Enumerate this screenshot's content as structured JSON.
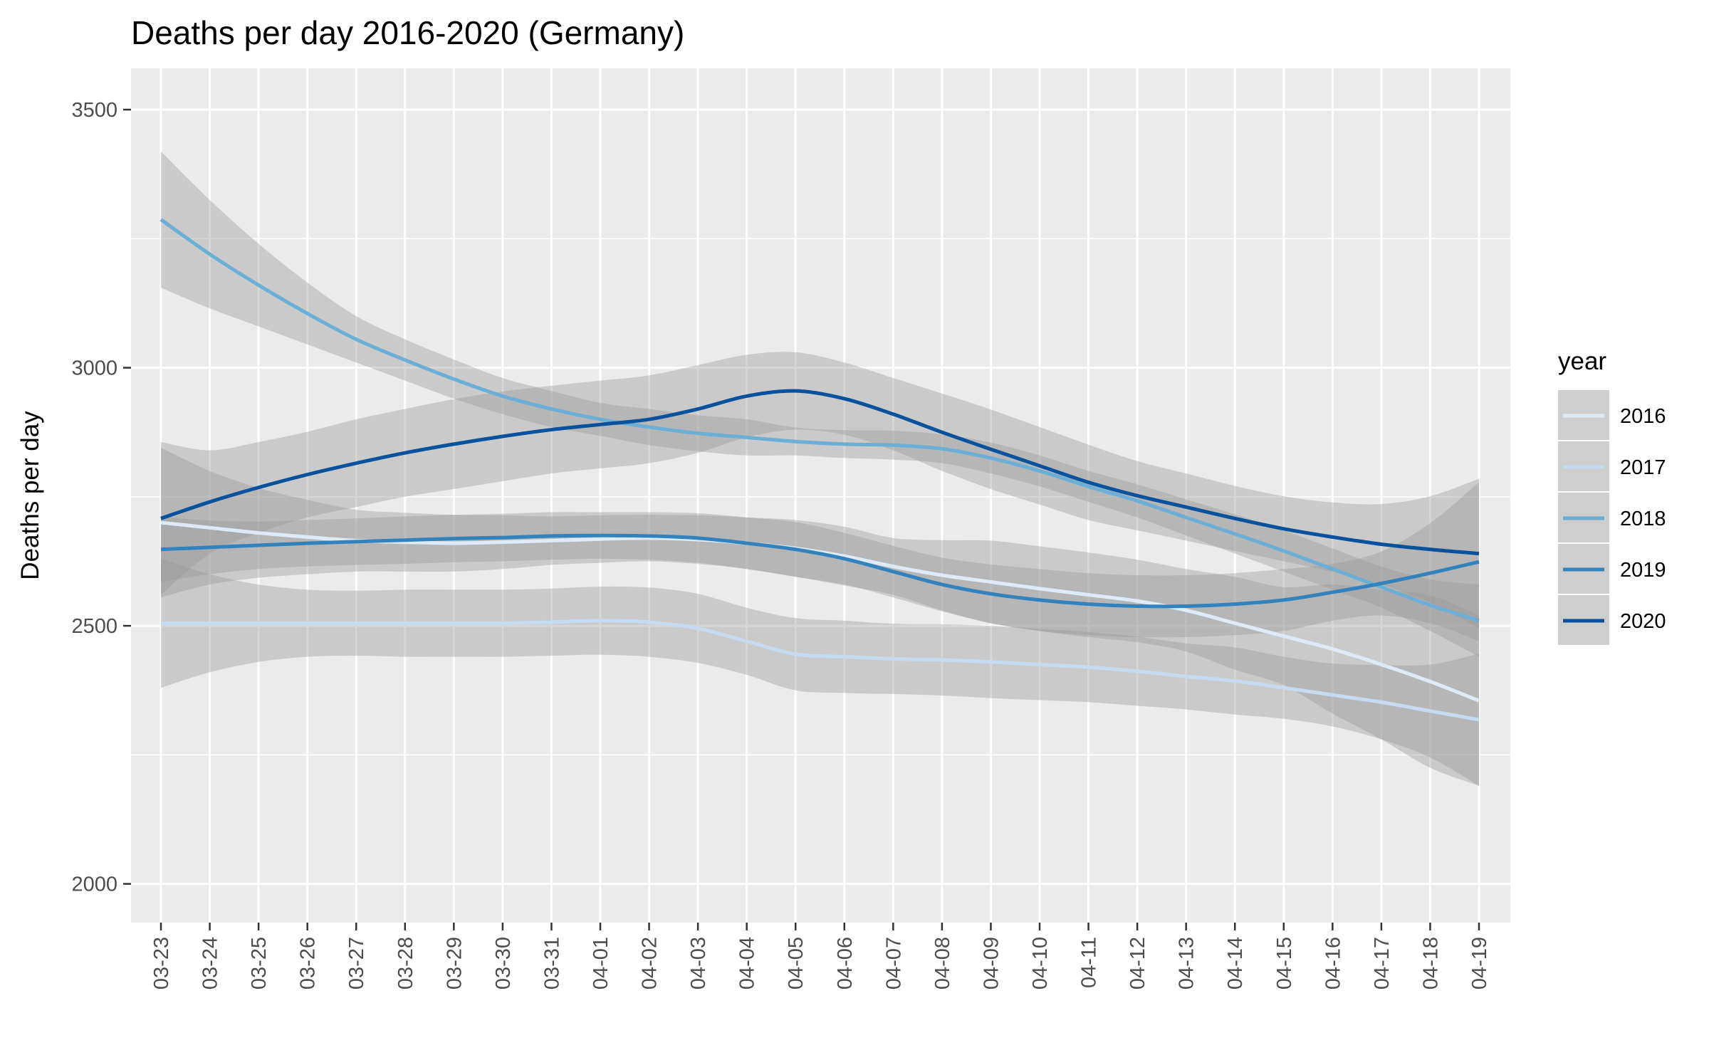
{
  "chart_data": {
    "type": "line",
    "title": "Deaths per day 2016-2020 (Germany)",
    "xlabel": "",
    "ylabel": "Deaths per day",
    "ylim": [
      1925,
      3580
    ],
    "yticks": [
      2000,
      2500,
      3000,
      3500
    ],
    "grid": true,
    "legend_title": "year",
    "legend_position": "right",
    "categories": [
      "03-23",
      "03-24",
      "03-25",
      "03-26",
      "03-27",
      "03-28",
      "03-29",
      "03-30",
      "03-31",
      "04-01",
      "04-02",
      "04-03",
      "04-04",
      "04-05",
      "04-06",
      "04-07",
      "04-08",
      "04-09",
      "04-10",
      "04-11",
      "04-12",
      "04-13",
      "04-14",
      "04-15",
      "04-16",
      "04-17",
      "04-18",
      "04-19"
    ],
    "series": [
      {
        "name": "2016",
        "color": "#deebf7",
        "values": [
          2700,
          2690,
          2680,
          2672,
          2665,
          2662,
          2660,
          2662,
          2665,
          2668,
          2670,
          2667,
          2660,
          2650,
          2635,
          2615,
          2598,
          2585,
          2572,
          2560,
          2548,
          2530,
          2505,
          2480,
          2455,
          2425,
          2392,
          2355
        ],
        "band_low": [
          2555,
          2580,
          2593,
          2600,
          2605,
          2605,
          2605,
          2610,
          2618,
          2622,
          2625,
          2620,
          2610,
          2595,
          2578,
          2560,
          2530,
          2505,
          2490,
          2478,
          2468,
          2450,
          2415,
          2385,
          2330,
          2280,
          2225,
          2190
        ],
        "band_high": [
          2845,
          2800,
          2767,
          2744,
          2725,
          2719,
          2715,
          2714,
          2712,
          2714,
          2715,
          2714,
          2710,
          2705,
          2692,
          2670,
          2666,
          2665,
          2654,
          2642,
          2628,
          2610,
          2595,
          2575,
          2580,
          2570,
          2559,
          2520
        ]
      },
      {
        "name": "2017",
        "color": "#c6dbef",
        "values": [
          2505,
          2505,
          2505,
          2505,
          2505,
          2505,
          2505,
          2505,
          2507,
          2510,
          2507,
          2495,
          2470,
          2445,
          2440,
          2436,
          2434,
          2430,
          2425,
          2420,
          2412,
          2402,
          2393,
          2380,
          2366,
          2352,
          2335,
          2318
        ],
        "band_low": [
          2380,
          2410,
          2430,
          2440,
          2442,
          2440,
          2440,
          2440,
          2442,
          2444,
          2440,
          2428,
          2405,
          2375,
          2370,
          2368,
          2365,
          2360,
          2356,
          2352,
          2345,
          2338,
          2328,
          2320,
          2305,
          2280,
          2245,
          2190
        ],
        "band_high": [
          2630,
          2600,
          2580,
          2570,
          2568,
          2570,
          2570,
          2570,
          2572,
          2576,
          2574,
          2562,
          2535,
          2515,
          2510,
          2504,
          2503,
          2500,
          2494,
          2488,
          2479,
          2466,
          2458,
          2440,
          2427,
          2424,
          2425,
          2446
        ]
      },
      {
        "name": "2018",
        "color": "#6baed6",
        "values": [
          3287,
          3220,
          3160,
          3105,
          3055,
          3015,
          2978,
          2945,
          2920,
          2900,
          2885,
          2873,
          2865,
          2857,
          2852,
          2850,
          2843,
          2825,
          2800,
          2770,
          2742,
          2710,
          2678,
          2645,
          2610,
          2575,
          2540,
          2510
        ],
        "band_low": [
          3155,
          3115,
          3080,
          3045,
          3010,
          2975,
          2940,
          2910,
          2885,
          2868,
          2850,
          2838,
          2830,
          2830,
          2825,
          2822,
          2815,
          2795,
          2770,
          2740,
          2710,
          2675,
          2640,
          2605,
          2570,
          2535,
          2490,
          2440
        ],
        "band_high": [
          3419,
          3325,
          3240,
          3165,
          3100,
          3055,
          3016,
          2980,
          2955,
          2932,
          2920,
          2908,
          2900,
          2884,
          2879,
          2878,
          2871,
          2855,
          2830,
          2800,
          2774,
          2745,
          2716,
          2685,
          2650,
          2615,
          2590,
          2580
        ]
      },
      {
        "name": "2019",
        "color": "#3182bd",
        "values": [
          2648,
          2652,
          2656,
          2660,
          2663,
          2666,
          2669,
          2671,
          2674,
          2675,
          2674,
          2670,
          2660,
          2648,
          2630,
          2605,
          2580,
          2562,
          2550,
          2542,
          2538,
          2538,
          2542,
          2550,
          2565,
          2582,
          2602,
          2624
        ],
        "band_low": [
          2585,
          2600,
          2610,
          2615,
          2618,
          2620,
          2623,
          2625,
          2628,
          2630,
          2628,
          2622,
          2610,
          2595,
          2580,
          2555,
          2528,
          2505,
          2490,
          2482,
          2478,
          2478,
          2482,
          2490,
          2510,
          2520,
          2505,
          2470
        ],
        "band_high": [
          2711,
          2704,
          2702,
          2705,
          2708,
          2712,
          2715,
          2717,
          2720,
          2720,
          2720,
          2718,
          2710,
          2701,
          2680,
          2655,
          2632,
          2619,
          2610,
          2602,
          2598,
          2598,
          2602,
          2610,
          2620,
          2644,
          2699,
          2778
        ]
      },
      {
        "name": "2020",
        "color": "#08519c",
        "values": [
          2708,
          2740,
          2768,
          2793,
          2815,
          2835,
          2852,
          2867,
          2880,
          2890,
          2900,
          2920,
          2945,
          2955,
          2940,
          2910,
          2875,
          2842,
          2810,
          2778,
          2752,
          2730,
          2708,
          2688,
          2672,
          2658,
          2648,
          2640
        ],
        "band_low": [
          2560,
          2640,
          2680,
          2710,
          2730,
          2750,
          2765,
          2780,
          2795,
          2805,
          2815,
          2835,
          2865,
          2880,
          2870,
          2840,
          2800,
          2765,
          2735,
          2705,
          2685,
          2665,
          2645,
          2625,
          2605,
          2580,
          2545,
          2495
        ],
        "band_high": [
          2856,
          2840,
          2856,
          2876,
          2900,
          2920,
          2939,
          2954,
          2965,
          2975,
          2985,
          3005,
          3025,
          3030,
          3010,
          2980,
          2950,
          2919,
          2885,
          2851,
          2819,
          2795,
          2771,
          2751,
          2739,
          2736,
          2751,
          2785
        ]
      }
    ]
  }
}
